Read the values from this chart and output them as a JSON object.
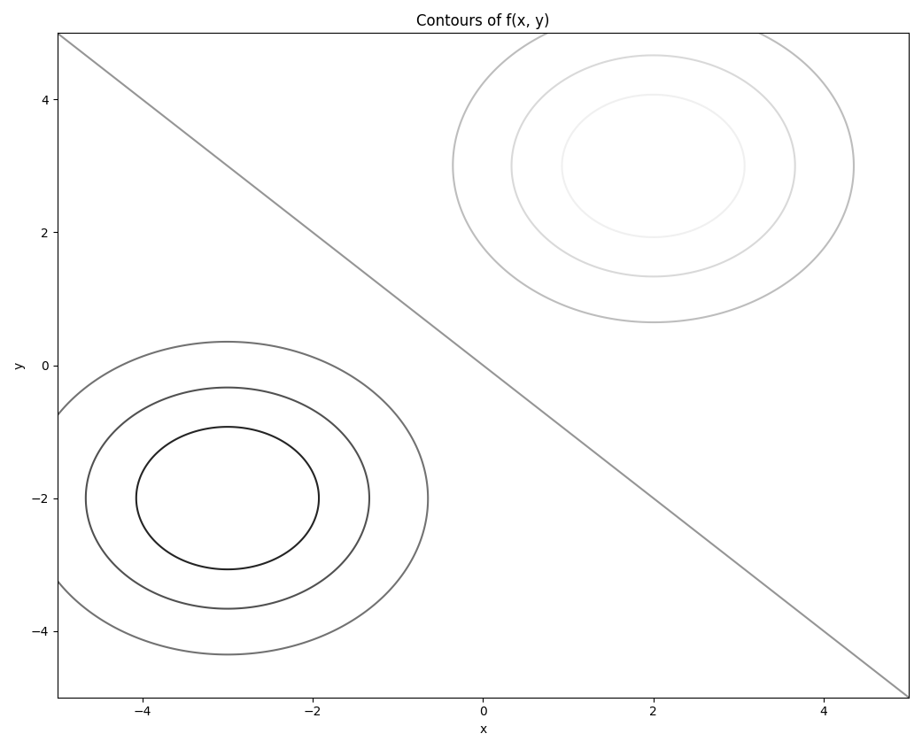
{
  "title": "Contours of f(x, y)",
  "xlabel": "x",
  "ylabel": "y",
  "xlim": [
    -5,
    5
  ],
  "ylim": [
    -5,
    5
  ],
  "x_range": [
    -5,
    5
  ],
  "y_range": [
    -5,
    5
  ],
  "n_points": 500,
  "figsize": [
    10.41,
    8.46
  ],
  "dpi": 100,
  "cmap": "Greys"
}
